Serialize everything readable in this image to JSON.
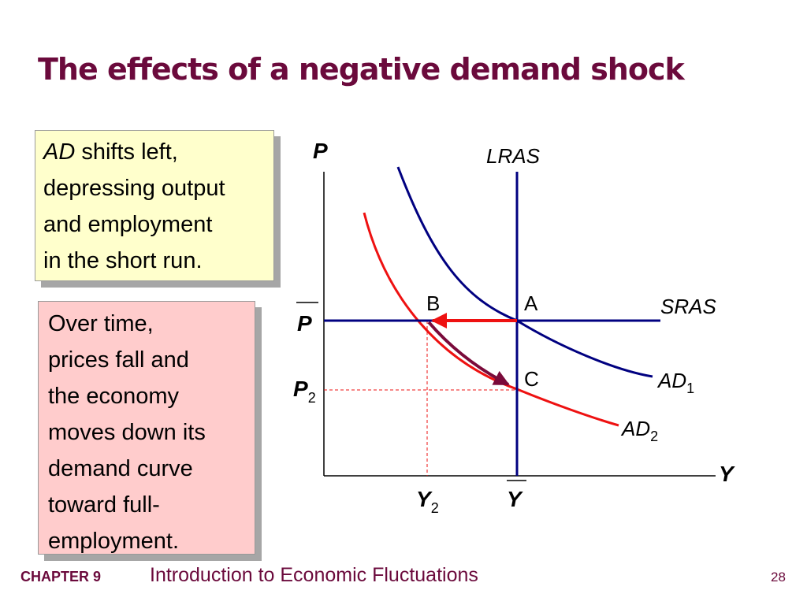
{
  "slide": {
    "title": "The effects of a negative demand shock",
    "box1": {
      "italic": "AD",
      "lines": [
        " shifts left,",
        "depressing output",
        "and employment",
        "in the short run."
      ]
    },
    "box2": {
      "lines": [
        "Over time,",
        "prices fall and",
        "the economy",
        "moves down its",
        "demand curve",
        "toward full-",
        "employment."
      ]
    },
    "footer": {
      "chapter": "CHAPTER 9",
      "title": "Introduction to Economic Fluctuations",
      "page": "28"
    }
  },
  "diagram": {
    "axis_y_label": "P",
    "axis_x_label": "Y",
    "lras_label": "LRAS",
    "sras_label": "SRAS",
    "ad1_label": {
      "main": "AD",
      "sub": "1"
    },
    "ad2_label": {
      "main": "AD",
      "sub": "2"
    },
    "point_a": "A",
    "point_b": "B",
    "point_c": "C",
    "p_bar_label": "P",
    "p2_label": {
      "main": "P",
      "sub": "2"
    },
    "y_bar_label": "Y",
    "y2_label": {
      "main": "Y",
      "sub": "2"
    },
    "colors": {
      "ad1": "#000080",
      "lras": "#000080",
      "sras": "#000080",
      "ad2": "#ee1111",
      "arrow_left": "#ee1111",
      "arrow_down": "#7a0a3a",
      "dashed": "#ee1111",
      "axis": "#000000"
    }
  }
}
